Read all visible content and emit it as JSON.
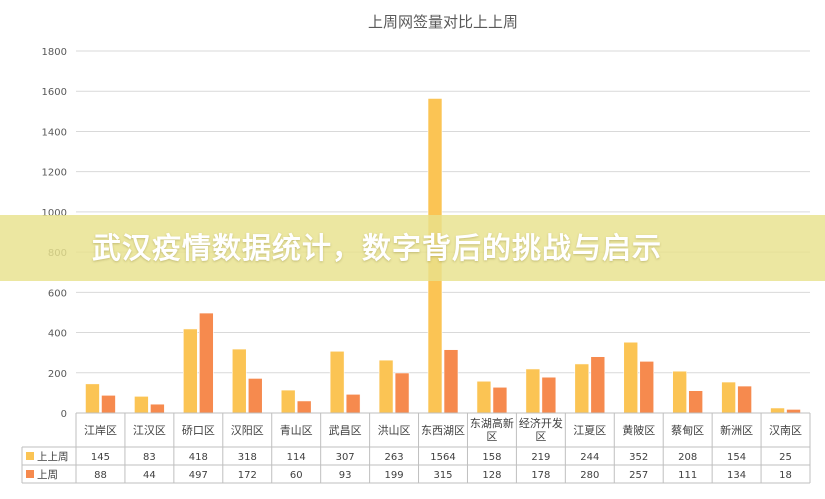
{
  "banner": {
    "headline": "武汉疫情数据统计，数字背后的挑战与启示"
  },
  "chart_data": {
    "type": "bar",
    "title": "上周网签量对比上上周",
    "xlabel": "",
    "ylabel": "",
    "ylim": [
      0,
      1800
    ],
    "yticks": [
      0,
      200,
      400,
      600,
      800,
      1000,
      1200,
      1400,
      1600,
      1800
    ],
    "grid": true,
    "legend": "table-bottom",
    "categories": [
      "江岸区",
      "江汉区",
      "硚口区",
      "汉阳区",
      "青山区",
      "武昌区",
      "洪山区",
      "东西湖区",
      "东湖高新区",
      "经济开发区",
      "江夏区",
      "黄陂区",
      "蔡甸区",
      "新洲区",
      "汉南区"
    ],
    "series": [
      {
        "name": "上上周",
        "color": "#FBC454",
        "values": [
          145,
          83,
          418,
          318,
          114,
          307,
          263,
          1564,
          158,
          219,
          244,
          352,
          208,
          154,
          25
        ]
      },
      {
        "name": "上周",
        "color": "#F68A4E",
        "values": [
          88,
          44,
          497,
          172,
          60,
          93,
          199,
          315,
          128,
          178,
          280,
          257,
          111,
          134,
          18
        ]
      }
    ]
  }
}
